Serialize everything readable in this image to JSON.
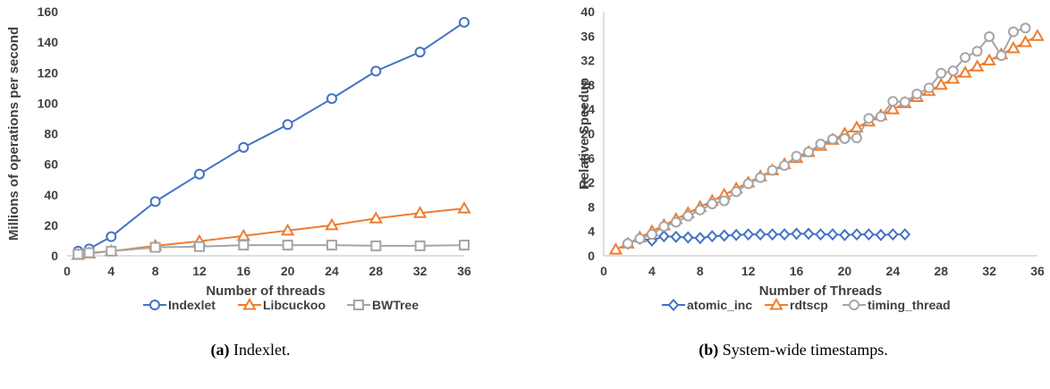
{
  "chart_data": [
    {
      "type": "line",
      "xlabel": "Number of threads",
      "ylabel": "Millions of operations per second",
      "xlim": [
        0,
        36
      ],
      "ylim": [
        0,
        160
      ],
      "xticks": [
        0,
        4,
        8,
        12,
        16,
        20,
        24,
        28,
        32,
        36
      ],
      "yticks": [
        0,
        20,
        40,
        60,
        80,
        100,
        120,
        140,
        160
      ],
      "grid": false,
      "legend_position": "bottom",
      "series": [
        {
          "name": "Indexlet",
          "color": "#4472C4",
          "marker": "circle",
          "x": [
            1,
            2,
            4,
            8,
            12,
            16,
            20,
            24,
            28,
            32,
            36
          ],
          "y": [
            3,
            4.5,
            12.5,
            35.5,
            53.5,
            71,
            86,
            103,
            121,
            133.5,
            153
          ]
        },
        {
          "name": "Libcuckoo",
          "color": "#ED7D31",
          "marker": "triangle",
          "x": [
            1,
            2,
            4,
            8,
            12,
            16,
            20,
            24,
            28,
            32,
            36
          ],
          "y": [
            0.5,
            1.5,
            3,
            6.5,
            9.5,
            13,
            16.5,
            20,
            24.5,
            28,
            31
          ]
        },
        {
          "name": "BWTree",
          "color": "#A5A5A5",
          "marker": "square",
          "x": [
            1,
            2,
            4,
            8,
            12,
            16,
            20,
            24,
            28,
            32,
            36
          ],
          "y": [
            1,
            2,
            3,
            5.5,
            6,
            7,
            7,
            7,
            6.5,
            6.5,
            7
          ]
        }
      ],
      "caption_label": "(a)",
      "caption_text": " Indexlet."
    },
    {
      "type": "line",
      "xlabel": "Number of Threads",
      "ylabel": "Relative Speedup",
      "xlim": [
        0,
        36
      ],
      "ylim": [
        0,
        40
      ],
      "xticks": [
        0,
        4,
        8,
        12,
        16,
        20,
        24,
        28,
        32,
        36
      ],
      "yticks": [
        0,
        4,
        8,
        12,
        16,
        20,
        24,
        28,
        32,
        36,
        40
      ],
      "grid": false,
      "legend_position": "bottom",
      "series": [
        {
          "name": "atomic_inc",
          "color": "#4472C4",
          "marker": "diamond",
          "x": [
            2,
            3,
            4,
            5,
            6,
            7,
            8,
            9,
            10,
            11,
            12,
            13,
            14,
            15,
            16,
            17,
            18,
            19,
            20,
            21,
            22,
            23,
            24,
            25
          ],
          "y": [
            2,
            2.8,
            2.5,
            3.2,
            3.1,
            3,
            2.9,
            3.2,
            3.3,
            3.4,
            3.5,
            3.5,
            3.5,
            3.5,
            3.6,
            3.6,
            3.5,
            3.5,
            3.4,
            3.5,
            3.5,
            3.4,
            3.5,
            3.5
          ]
        },
        {
          "name": "rdtscp",
          "color": "#ED7D31",
          "marker": "triangle",
          "x": [
            1,
            2,
            3,
            4,
            5,
            6,
            7,
            8,
            9,
            10,
            11,
            12,
            13,
            14,
            15,
            16,
            17,
            18,
            19,
            20,
            21,
            22,
            23,
            24,
            25,
            26,
            27,
            28,
            29,
            30,
            31,
            32,
            33,
            34,
            35,
            36
          ],
          "y": [
            1,
            2,
            3,
            4,
            5,
            6,
            7,
            8,
            9,
            10,
            11,
            12,
            13,
            14,
            15,
            16,
            17,
            18,
            19,
            20,
            21,
            22,
            23,
            24,
            25,
            26,
            27,
            28,
            29,
            30,
            31,
            32,
            33,
            34,
            35,
            36
          ]
        },
        {
          "name": "timing_thread",
          "color": "#A5A5A5",
          "marker": "circle",
          "x": [
            2,
            3,
            4,
            5,
            6,
            7,
            8,
            9,
            10,
            11,
            12,
            13,
            14,
            15,
            16,
            17,
            18,
            19,
            20,
            21,
            22,
            23,
            24,
            25,
            26,
            27,
            28,
            29,
            30,
            31,
            32,
            33,
            34,
            35
          ],
          "y": [
            2,
            2.8,
            3.5,
            4.8,
            5.5,
            6.5,
            7.5,
            8.5,
            9,
            10.5,
            11.8,
            12.8,
            14,
            14.8,
            16.3,
            17,
            18.3,
            19.1,
            19.2,
            19.3,
            22.5,
            22.8,
            25.3,
            25.2,
            26.5,
            27.5,
            29.9,
            30.3,
            32.5,
            33.5,
            35.9,
            32.8,
            36.7,
            37.3
          ]
        }
      ],
      "caption_label": "(b)",
      "caption_text": " System-wide timestamps."
    }
  ]
}
